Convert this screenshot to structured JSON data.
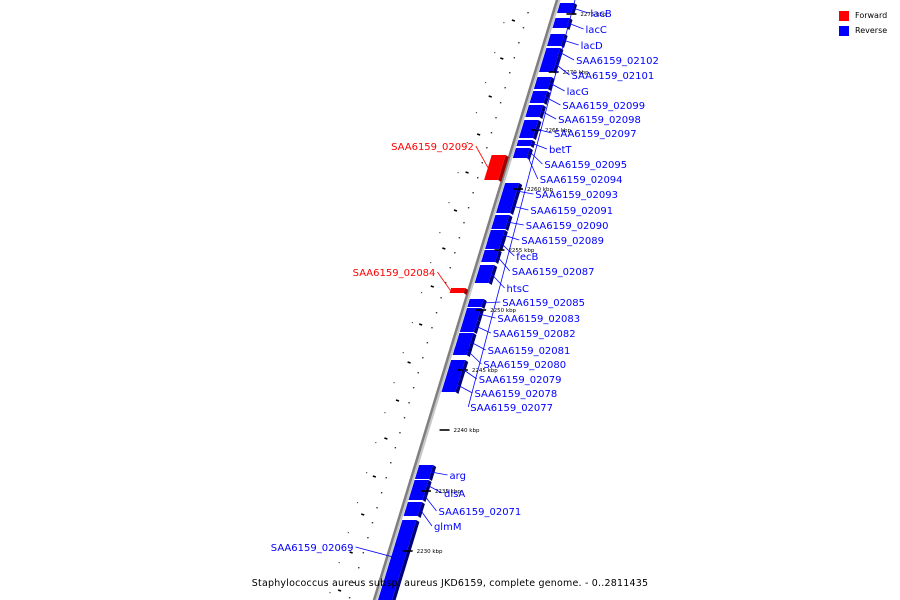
{
  "colors": {
    "forward": "#ff0000",
    "reverse": "#0000ff",
    "backbone": "#808080"
  },
  "legend": {
    "forward_label": "Forward",
    "reverse_label": "Reverse"
  },
  "caption": "Staphylococcus aureus subsp. aureus JKD6159, complete genome. - 0..2811435",
  "scale_labels": [
    "2275 kbp",
    "2270 kbp",
    "2265 kbp",
    "2260 kbp",
    "2255 kbp",
    "2250 kbp",
    "2245 kbp",
    "2240 kbp",
    "2235 kbp",
    "2230 kbp"
  ],
  "genes": [
    {
      "name": "lacB",
      "strand": "reverse"
    },
    {
      "name": "lacC",
      "strand": "reverse"
    },
    {
      "name": "lacD",
      "strand": "reverse"
    },
    {
      "name": "SAA6159_02102",
      "strand": "reverse"
    },
    {
      "name": "SAA6159_02101",
      "strand": "reverse"
    },
    {
      "name": "lacG",
      "strand": "reverse"
    },
    {
      "name": "SAA6159_02099",
      "strand": "reverse"
    },
    {
      "name": "SAA6159_02098",
      "strand": "reverse"
    },
    {
      "name": "SAA6159_02097",
      "strand": "reverse"
    },
    {
      "name": "betT",
      "strand": "reverse"
    },
    {
      "name": "SAA6159_02095",
      "strand": "reverse"
    },
    {
      "name": "SAA6159_02094",
      "strand": "reverse"
    },
    {
      "name": "SAA6159_02093",
      "strand": "reverse"
    },
    {
      "name": "SAA6159_02092",
      "strand": "forward"
    },
    {
      "name": "SAA6159_02091",
      "strand": "reverse"
    },
    {
      "name": "SAA6159_02090",
      "strand": "reverse"
    },
    {
      "name": "SAA6159_02089",
      "strand": "reverse"
    },
    {
      "name": "fecB",
      "strand": "reverse"
    },
    {
      "name": "SAA6159_02087",
      "strand": "reverse"
    },
    {
      "name": "htsC",
      "strand": "reverse"
    },
    {
      "name": "SAA6159_02085",
      "strand": "reverse"
    },
    {
      "name": "SAA6159_02084",
      "strand": "forward"
    },
    {
      "name": "SAA6159_02083",
      "strand": "reverse"
    },
    {
      "name": "SAA6159_02082",
      "strand": "reverse"
    },
    {
      "name": "SAA6159_02081",
      "strand": "reverse"
    },
    {
      "name": "SAA6159_02080",
      "strand": "reverse"
    },
    {
      "name": "SAA6159_02079",
      "strand": "reverse"
    },
    {
      "name": "SAA6159_02078",
      "strand": "reverse"
    },
    {
      "name": "SAA6159_02077",
      "strand": "reverse"
    },
    {
      "name": "arg",
      "strand": "reverse"
    },
    {
      "name": "disA",
      "strand": "reverse"
    },
    {
      "name": "SAA6159_02071",
      "strand": "reverse"
    },
    {
      "name": "glmM",
      "strand": "reverse"
    },
    {
      "name": "SAA6159_02069",
      "strand": "reverse"
    }
  ]
}
